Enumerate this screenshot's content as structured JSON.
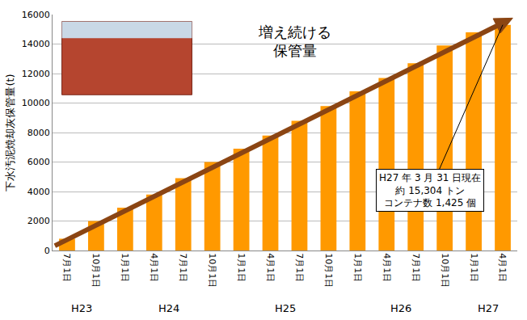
{
  "chart_data": {
    "type": "bar",
    "categories": [
      "7月1日",
      "10月1日",
      "1月1日",
      "4月1日",
      "7月1日",
      "10月1日",
      "1月1日",
      "4月1日",
      "7月1日",
      "10月1日",
      "1月1日",
      "4月1日",
      "7月1日",
      "10月1日",
      "1月1日",
      "4月1日"
    ],
    "category_groups": [
      "H23",
      "H23",
      "H24",
      "H24",
      "H24",
      "H24",
      "H25",
      "H25",
      "H25",
      "H25",
      "H26",
      "H26",
      "H26",
      "H26",
      "H27",
      "H27"
    ],
    "values": [
      800,
      2000,
      2900,
      3800,
      4900,
      6000,
      6900,
      7800,
      8800,
      9800,
      10800,
      11700,
      12700,
      13900,
      14800,
      15304
    ],
    "color": "#ff9900",
    "y_label": "下水汚泥焼却灰保管量(t)",
    "ylim": [
      0,
      16000
    ],
    "yticks": [
      0,
      2000,
      4000,
      6000,
      8000,
      10000,
      12000,
      14000,
      16000
    ],
    "grid": true,
    "annotations": [
      "増え続ける\n保管量",
      "H27 年 3 月 31 日現在\n約 15,304 トン\nコンテナ数 1,425 個"
    ]
  }
}
